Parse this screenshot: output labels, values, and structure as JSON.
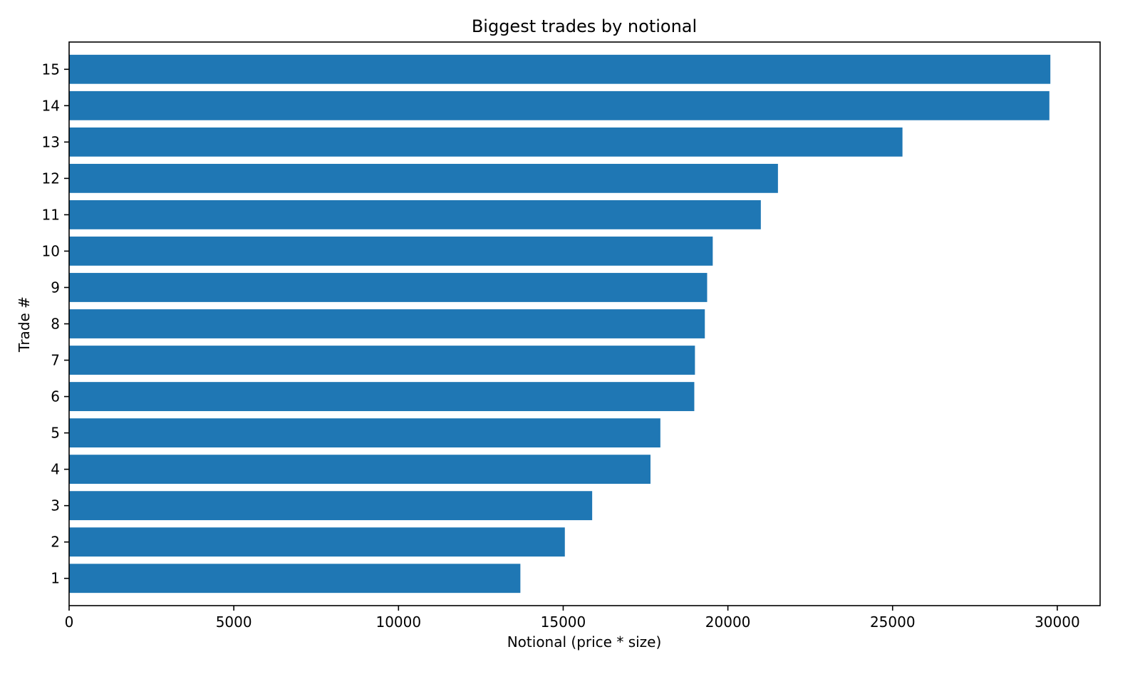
{
  "chart_data": {
    "type": "bar",
    "orientation": "horizontal",
    "title": "Biggest trades by notional",
    "xlabel": "Notional (price * size)",
    "ylabel": "Trade #",
    "categories": [
      "1",
      "2",
      "3",
      "4",
      "5",
      "6",
      "7",
      "8",
      "9",
      "10",
      "11",
      "12",
      "13",
      "14",
      "15"
    ],
    "values": [
      13700,
      15050,
      15880,
      17650,
      17950,
      18980,
      19000,
      19300,
      19370,
      19540,
      21000,
      21520,
      25300,
      29760,
      29790
    ],
    "xlim": [
      0,
      31300
    ],
    "xticks": [
      0,
      5000,
      10000,
      15000,
      20000,
      25000,
      30000
    ],
    "xtick_labels": [
      "0",
      "5000",
      "10000",
      "15000",
      "20000",
      "25000",
      "30000"
    ],
    "grid": false,
    "legend": "none",
    "bar_color": "#1f77b4"
  }
}
